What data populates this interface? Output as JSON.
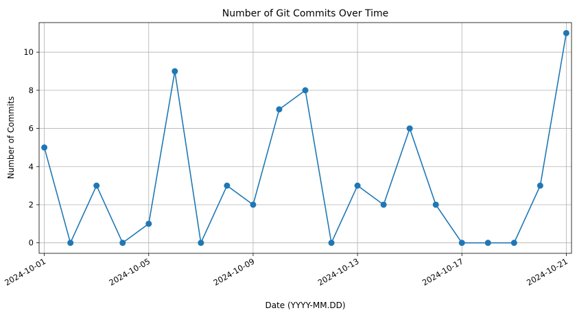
{
  "chart_data": {
    "type": "line",
    "title": "Number of Git Commits Over Time",
    "xlabel": "Date (YYYY-MM.DD)",
    "ylabel": "Number of Commits",
    "x": [
      "2024-10-01",
      "2024-10-02",
      "2024-10-03",
      "2024-10-04",
      "2024-10-05",
      "2024-10-06",
      "2024-10-07",
      "2024-10-08",
      "2024-10-09",
      "2024-10-10",
      "2024-10-11",
      "2024-10-12",
      "2024-10-13",
      "2024-10-14",
      "2024-10-15",
      "2024-10-16",
      "2024-10-17",
      "2024-10-18",
      "2024-10-19",
      "2024-10-20",
      "2024-10-21"
    ],
    "series": [
      {
        "values": [
          5,
          0,
          3,
          0,
          1,
          9,
          0,
          3,
          2,
          7,
          8,
          0,
          3,
          2,
          6,
          2,
          0,
          0,
          0,
          3,
          11
        ]
      }
    ],
    "xticks": [
      "2024-10-01",
      "2024-10-05",
      "2024-10-09",
      "2024-10-13",
      "2024-10-17",
      "2024-10-21"
    ],
    "xtick_labels": [
      "2024-10-01",
      "2024-10-05",
      "2024-10-09",
      "2024-10-13",
      "2024-10-17",
      "2024-10-21"
    ],
    "yticks": [
      0,
      2,
      4,
      6,
      8,
      10
    ],
    "ytick_labels": [
      "0",
      "2",
      "4",
      "6",
      "8",
      "10"
    ],
    "ylim": [
      -0.55,
      11.55
    ],
    "xlim": [
      "2024-09-30T19:12",
      "2024-10-21T04:48"
    ],
    "grid": true,
    "marker": "circle",
    "color": "#1f77b4"
  }
}
